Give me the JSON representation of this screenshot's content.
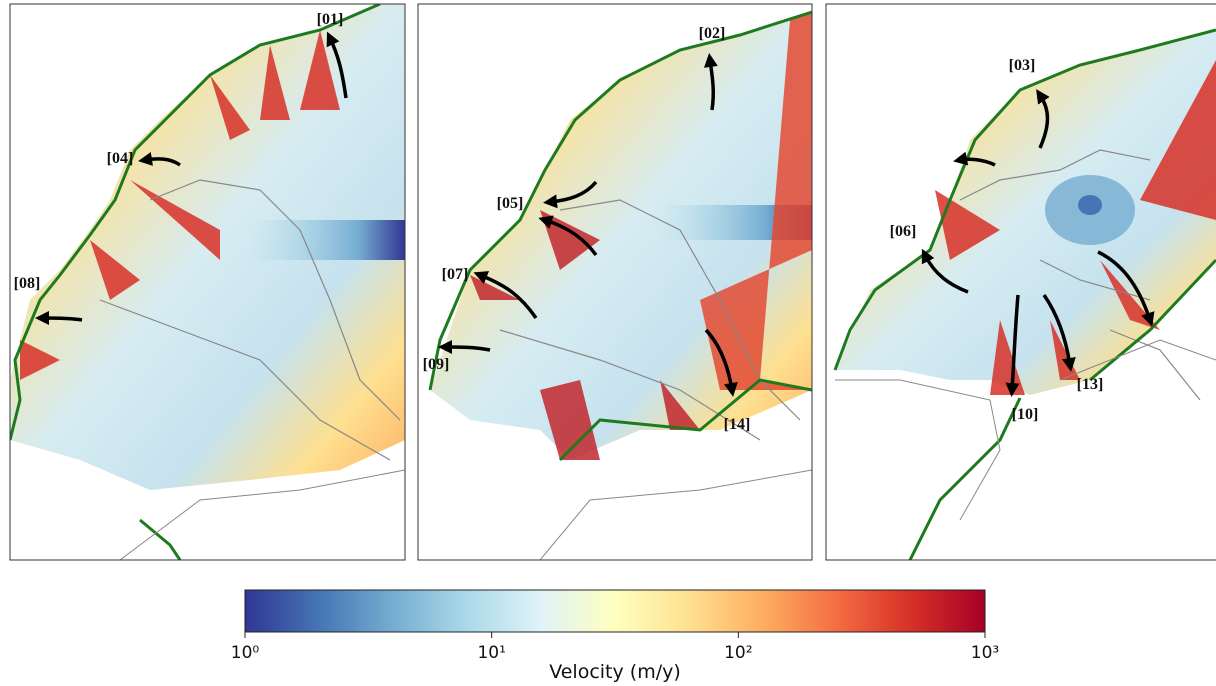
{
  "panels": [
    {
      "labels": [
        "[01]",
        "[04]",
        "[08]"
      ]
    },
    {
      "labels": [
        "[02]",
        "[05]",
        "[07]",
        "[09]",
        "[14]"
      ]
    },
    {
      "labels": [
        "[03]",
        "[06]",
        "[10]",
        "[13]"
      ]
    }
  ],
  "colorbar": {
    "label": "Velocity (m/y)",
    "scale": "log",
    "lim": [
      1,
      1000
    ],
    "ticks": [
      {
        "value": 1,
        "label": "10⁰"
      },
      {
        "value": 10,
        "label": "10¹"
      },
      {
        "value": 100,
        "label": "10²"
      },
      {
        "value": 1000,
        "label": "10³"
      }
    ]
  }
}
